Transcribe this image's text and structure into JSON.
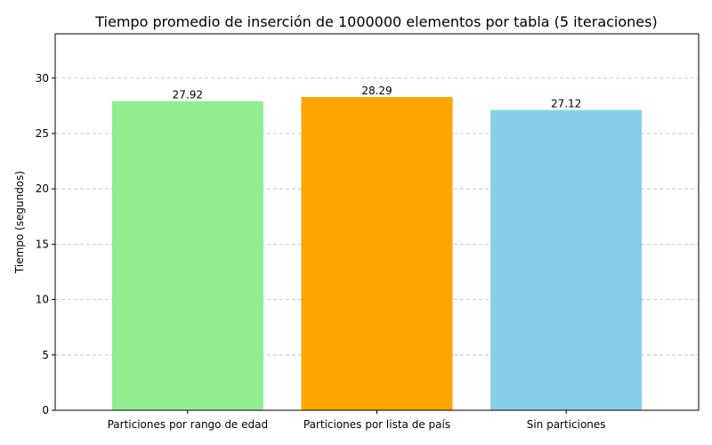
{
  "chart_data": {
    "type": "bar",
    "title": "Tiempo promedio de inserción de 1000000 elementos por tabla (5 iteraciones)",
    "xlabel": "",
    "ylabel": "Tiempo (segundos)",
    "categories": [
      "Particiones por rango de edad",
      "Particiones por lista de país",
      "Sin particiones"
    ],
    "values": [
      27.92,
      28.29,
      27.12
    ],
    "data_labels": [
      "27.92",
      "28.29",
      "27.12"
    ],
    "colors": [
      "#90ee90",
      "#ffa500",
      "#87ceeb"
    ],
    "ylim": [
      0,
      34
    ],
    "yticks": [
      0,
      5,
      10,
      15,
      20,
      25,
      30
    ],
    "grid": "y-dashed"
  }
}
